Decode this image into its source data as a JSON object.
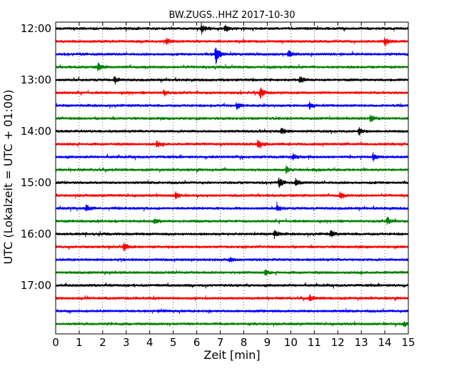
{
  "chart_data": {
    "type": "line",
    "subtype": "helicorder",
    "title": "BW.ZUGS..HHZ 2017-10-30",
    "xlabel": "Zeit  [min]",
    "ylabel": "UTC (Lokalzeit = UTC + 01:00)",
    "xlim": [
      0,
      15
    ],
    "x_ticks": [
      "0",
      "1",
      "2",
      "3",
      "4",
      "5",
      "6",
      "7",
      "8",
      "9",
      "10",
      "11",
      "12",
      "13",
      "14",
      "15"
    ],
    "y_ticks": [
      "12:00",
      "13:00",
      "14:00",
      "15:00",
      "16:00",
      "17:00"
    ],
    "grid": "vertical-dotted",
    "colors": [
      "#000000",
      "#ff0000",
      "#0000ff",
      "#008000"
    ],
    "trace_count": 24,
    "events": [
      {
        "trace": 0,
        "minute": 6.2,
        "amp": 0.45
      },
      {
        "trace": 0,
        "minute": 7.2,
        "amp": 0.3
      },
      {
        "trace": 1,
        "minute": 4.7,
        "amp": 0.25
      },
      {
        "trace": 1,
        "minute": 14.0,
        "amp": 0.35
      },
      {
        "trace": 2,
        "minute": 6.8,
        "amp": 0.9
      },
      {
        "trace": 2,
        "minute": 9.9,
        "amp": 0.3
      },
      {
        "trace": 3,
        "minute": 1.8,
        "amp": 0.35
      },
      {
        "trace": 4,
        "minute": 2.5,
        "amp": 0.3
      },
      {
        "trace": 4,
        "minute": 10.4,
        "amp": 0.3
      },
      {
        "trace": 5,
        "minute": 8.7,
        "amp": 0.45
      },
      {
        "trace": 5,
        "minute": 4.6,
        "amp": 0.25
      },
      {
        "trace": 6,
        "minute": 7.7,
        "amp": 0.3
      },
      {
        "trace": 6,
        "minute": 10.8,
        "amp": 0.25
      },
      {
        "trace": 7,
        "minute": 13.4,
        "amp": 0.3
      },
      {
        "trace": 8,
        "minute": 9.6,
        "amp": 0.3
      },
      {
        "trace": 8,
        "minute": 12.9,
        "amp": 0.3
      },
      {
        "trace": 9,
        "minute": 8.6,
        "amp": 0.35
      },
      {
        "trace": 9,
        "minute": 4.3,
        "amp": 0.25
      },
      {
        "trace": 10,
        "minute": 10.1,
        "amp": 0.25
      },
      {
        "trace": 10,
        "minute": 13.5,
        "amp": 0.3
      },
      {
        "trace": 11,
        "minute": 9.8,
        "amp": 0.3
      },
      {
        "trace": 12,
        "minute": 9.5,
        "amp": 0.4
      },
      {
        "trace": 12,
        "minute": 10.2,
        "amp": 0.3
      },
      {
        "trace": 13,
        "minute": 5.1,
        "amp": 0.25
      },
      {
        "trace": 13,
        "minute": 12.1,
        "amp": 0.25
      },
      {
        "trace": 14,
        "minute": 1.3,
        "amp": 0.3
      },
      {
        "trace": 14,
        "minute": 9.4,
        "amp": 0.3
      },
      {
        "trace": 15,
        "minute": 4.2,
        "amp": 0.25
      },
      {
        "trace": 15,
        "minute": 14.1,
        "amp": 0.3
      },
      {
        "trace": 16,
        "minute": 9.3,
        "amp": 0.35
      },
      {
        "trace": 16,
        "minute": 11.7,
        "amp": 0.3
      },
      {
        "trace": 17,
        "minute": 2.9,
        "amp": 0.35
      },
      {
        "trace": 18,
        "minute": 7.4,
        "amp": 0.2
      },
      {
        "trace": 19,
        "minute": 8.9,
        "amp": 0.2
      },
      {
        "trace": 21,
        "minute": 10.8,
        "amp": 0.25
      },
      {
        "trace": 23,
        "minute": 14.8,
        "amp": 0.25
      }
    ]
  }
}
